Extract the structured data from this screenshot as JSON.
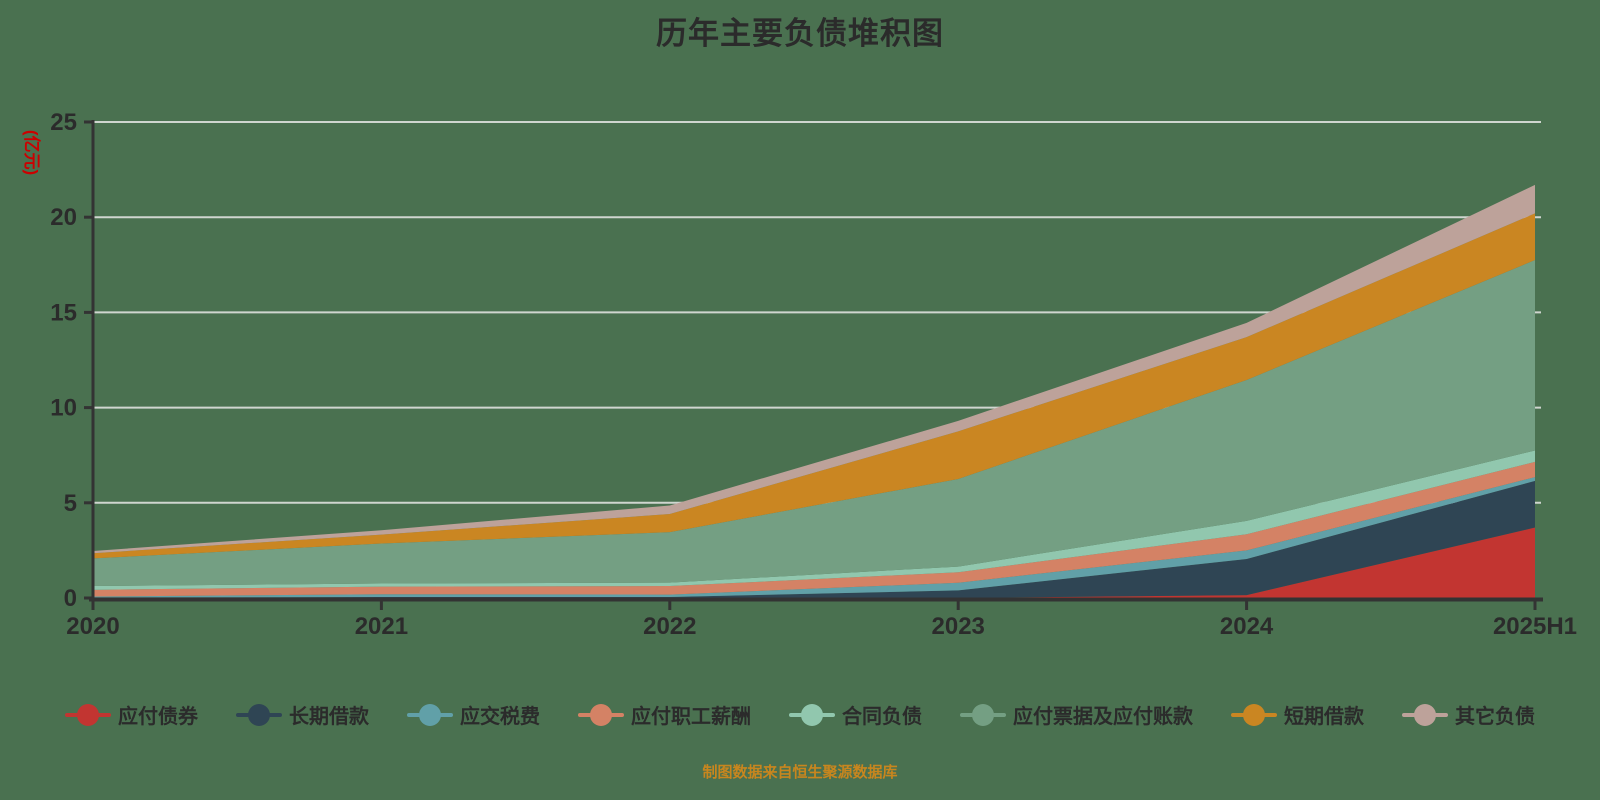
{
  "chart_data": {
    "type": "area",
    "stacked": true,
    "title": "历年主要负债堆积图",
    "ylabel": "(亿元)",
    "xlabel": "",
    "categories": [
      "2020",
      "2021",
      "2022",
      "2023",
      "2024",
      "2025H1"
    ],
    "y_ticks": [
      0,
      5,
      10,
      15,
      20,
      25
    ],
    "ylim": [
      0,
      25
    ],
    "grid": true,
    "legend_position": "bottom",
    "series": [
      {
        "name": "应付债券",
        "color": "#c23531",
        "values": [
          0,
          0,
          0,
          0,
          0.15,
          3.7
        ]
      },
      {
        "name": "长期借款",
        "color": "#2f4554",
        "values": [
          0.03,
          0.05,
          0.05,
          0.4,
          1.9,
          2.45
        ]
      },
      {
        "name": "应交税费",
        "color": "#61a0a8",
        "values": [
          0.05,
          0.15,
          0.13,
          0.4,
          0.45,
          0.2
        ]
      },
      {
        "name": "应付职工薪酬",
        "color": "#d48265",
        "values": [
          0.35,
          0.4,
          0.45,
          0.55,
          0.85,
          0.8
        ]
      },
      {
        "name": "合同负债",
        "color": "#91c7ae",
        "values": [
          0.2,
          0.16,
          0.18,
          0.3,
          0.7,
          0.6
        ]
      },
      {
        "name": "应付票据及应付账款",
        "color": "#749f83",
        "values": [
          1.45,
          2.1,
          2.65,
          4.6,
          7.4,
          10.0
        ]
      },
      {
        "name": "短期借款",
        "color": "#ca8622",
        "values": [
          0.27,
          0.47,
          0.95,
          2.5,
          2.25,
          2.45
        ]
      },
      {
        "name": "其它负债",
        "color": "#bda29a",
        "values": [
          0.12,
          0.23,
          0.45,
          0.55,
          0.75,
          1.5
        ]
      }
    ]
  },
  "footer": {
    "note": "制图数据来自恒生聚源数据库"
  },
  "colors": {
    "background": "#4A7150",
    "title": "#2b2b2b",
    "axis_line": "#333333",
    "grid_line": "#cfd6cf",
    "tick_label": "#2b2b2b",
    "unit_label": "#cc0000",
    "footer_text": "#c8861e"
  }
}
